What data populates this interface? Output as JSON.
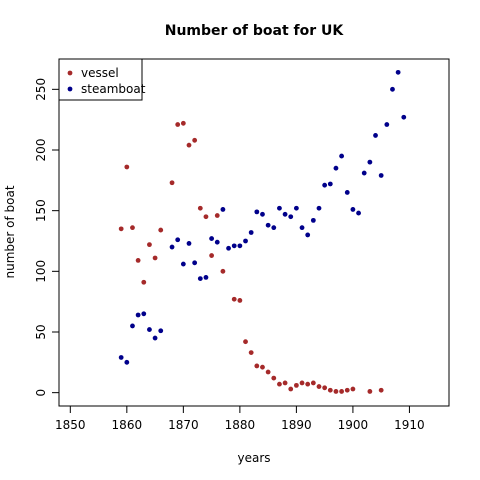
{
  "chart_data": {
    "type": "scatter",
    "title": "Number of boat for UK",
    "xlabel": "years",
    "ylabel": "number of boat",
    "xlim": [
      1848,
      1917
    ],
    "ylim": [
      -11,
      275
    ],
    "x_ticks": [
      1850,
      1860,
      1870,
      1880,
      1890,
      1900,
      1910
    ],
    "y_ticks": [
      0,
      50,
      100,
      150,
      200,
      250
    ],
    "grid": false,
    "legend_position": "top-left",
    "series": [
      {
        "name": "vessel",
        "color": "#a52a2a",
        "points": [
          [
            1859,
            135
          ],
          [
            1860,
            186
          ],
          [
            1861,
            136
          ],
          [
            1862,
            109
          ],
          [
            1863,
            91
          ],
          [
            1864,
            122
          ],
          [
            1865,
            111
          ],
          [
            1866,
            134
          ],
          [
            1868,
            173
          ],
          [
            1869,
            221
          ],
          [
            1870,
            222
          ],
          [
            1871,
            204
          ],
          [
            1872,
            208
          ],
          [
            1873,
            152
          ],
          [
            1874,
            145
          ],
          [
            1875,
            113
          ],
          [
            1876,
            146
          ],
          [
            1877,
            100
          ],
          [
            1879,
            77
          ],
          [
            1880,
            76
          ],
          [
            1881,
            42
          ],
          [
            1882,
            33
          ],
          [
            1883,
            22
          ],
          [
            1884,
            21
          ],
          [
            1885,
            17
          ],
          [
            1886,
            12
          ],
          [
            1887,
            7
          ],
          [
            1888,
            8
          ],
          [
            1889,
            3
          ],
          [
            1890,
            6
          ],
          [
            1891,
            8
          ],
          [
            1892,
            7
          ],
          [
            1893,
            8
          ],
          [
            1894,
            5
          ],
          [
            1895,
            4
          ],
          [
            1896,
            2
          ],
          [
            1897,
            1
          ],
          [
            1898,
            1
          ],
          [
            1899,
            2
          ],
          [
            1900,
            3
          ],
          [
            1903,
            1
          ],
          [
            1905,
            2
          ]
        ]
      },
      {
        "name": "steamboat",
        "color": "#00008b",
        "points": [
          [
            1859,
            29
          ],
          [
            1860,
            25
          ],
          [
            1861,
            55
          ],
          [
            1862,
            64
          ],
          [
            1863,
            65
          ],
          [
            1864,
            52
          ],
          [
            1865,
            45
          ],
          [
            1866,
            51
          ],
          [
            1868,
            120
          ],
          [
            1869,
            126
          ],
          [
            1870,
            106
          ],
          [
            1871,
            123
          ],
          [
            1872,
            107
          ],
          [
            1873,
            94
          ],
          [
            1874,
            95
          ],
          [
            1875,
            127
          ],
          [
            1876,
            124
          ],
          [
            1877,
            151
          ],
          [
            1878,
            119
          ],
          [
            1879,
            121
          ],
          [
            1880,
            121
          ],
          [
            1881,
            125
          ],
          [
            1882,
            132
          ],
          [
            1883,
            149
          ],
          [
            1884,
            147
          ],
          [
            1885,
            138
          ],
          [
            1886,
            136
          ],
          [
            1887,
            152
          ],
          [
            1888,
            147
          ],
          [
            1889,
            145
          ],
          [
            1890,
            152
          ],
          [
            1891,
            136
          ],
          [
            1892,
            130
          ],
          [
            1893,
            142
          ],
          [
            1894,
            152
          ],
          [
            1895,
            171
          ],
          [
            1896,
            172
          ],
          [
            1897,
            185
          ],
          [
            1898,
            195
          ],
          [
            1899,
            165
          ],
          [
            1900,
            151
          ],
          [
            1901,
            148
          ],
          [
            1902,
            181
          ],
          [
            1903,
            190
          ],
          [
            1904,
            212
          ],
          [
            1905,
            179
          ],
          [
            1906,
            221
          ],
          [
            1907,
            250
          ],
          [
            1908,
            264
          ],
          [
            1909,
            227
          ]
        ]
      }
    ]
  }
}
